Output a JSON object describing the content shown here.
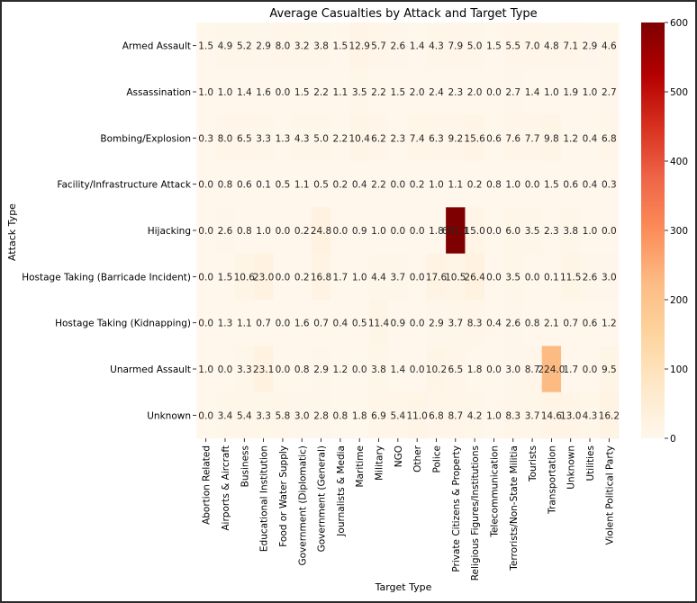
{
  "chart_data": {
    "type": "heatmap",
    "title": "Average Casualties by Attack and Target Type",
    "xlabel": "Target Type",
    "ylabel": "Attack Type",
    "colormap": "OrRd",
    "color_range": [
      0,
      600
    ],
    "colorbar_ticks": [
      0,
      100,
      200,
      300,
      400,
      500,
      600
    ],
    "columns": [
      "Abortion Related",
      "Airports & Aircraft",
      "Business",
      "Educational Institution",
      "Food or Water Supply",
      "Government (Diplomatic)",
      "Government (General)",
      "Journalists & Media",
      "Maritime",
      "Military",
      "NGO",
      "Other",
      "Police",
      "Private Citizens & Property",
      "Religious Figures/Institutions",
      "Telecommunication",
      "Terrorists/Non-State Militia",
      "Tourists",
      "Transportation",
      "Unknown",
      "Utilities",
      "Violent Political Party"
    ],
    "rows": [
      "Armed Assault",
      "Assassination",
      "Bombing/Explosion",
      "Facility/Infrastructure Attack",
      "Hijacking",
      "Hostage Taking (Barricade Incident)",
      "Hostage Taking (Kidnapping)",
      "Unarmed Assault",
      "Unknown"
    ],
    "values": [
      [
        1.5,
        4.9,
        5.2,
        2.9,
        8.0,
        3.2,
        3.8,
        1.5,
        12.9,
        5.7,
        2.6,
        1.4,
        4.3,
        7.9,
        5.0,
        1.5,
        5.5,
        7.0,
        4.8,
        7.1,
        2.9,
        4.6
      ],
      [
        1.0,
        1.0,
        1.4,
        1.6,
        0.0,
        1.5,
        2.2,
        1.1,
        3.5,
        2.2,
        1.5,
        2.0,
        2.4,
        2.3,
        2.0,
        0.0,
        2.7,
        1.4,
        1.0,
        1.9,
        1.0,
        2.7
      ],
      [
        0.3,
        8.0,
        6.5,
        3.3,
        1.3,
        4.3,
        5.0,
        2.2,
        10.4,
        6.2,
        2.3,
        7.4,
        6.3,
        9.2,
        15.6,
        0.6,
        7.6,
        7.7,
        9.8,
        1.2,
        0.4,
        6.8
      ],
      [
        0.0,
        0.8,
        0.6,
        0.1,
        0.5,
        1.1,
        0.5,
        0.2,
        0.4,
        2.2,
        0.0,
        0.2,
        1.0,
        1.1,
        0.2,
        0.8,
        1.0,
        0.0,
        1.5,
        0.6,
        0.4,
        0.3
      ],
      [
        0.0,
        2.6,
        0.8,
        1.0,
        0.0,
        0.2,
        24.8,
        0.0,
        0.9,
        1.0,
        0.0,
        0.0,
        1.8,
        601.1,
        15.0,
        0.0,
        6.0,
        3.5,
        2.3,
        3.8,
        1.0,
        0.0
      ],
      [
        0.0,
        1.5,
        10.6,
        23.0,
        0.0,
        0.2,
        16.8,
        1.7,
        1.0,
        4.4,
        3.7,
        0.0,
        17.6,
        10.5,
        26.4,
        0.0,
        3.5,
        0.0,
        0.1,
        11.5,
        2.6,
        3.0
      ],
      [
        0.0,
        1.3,
        1.1,
        0.7,
        0.0,
        1.6,
        0.7,
        0.4,
        0.5,
        11.4,
        0.9,
        0.0,
        2.9,
        3.7,
        8.3,
        0.4,
        2.6,
        0.8,
        2.1,
        0.7,
        0.6,
        1.2
      ],
      [
        1.0,
        0.0,
        3.3,
        23.1,
        0.0,
        0.8,
        2.9,
        1.2,
        0.0,
        3.8,
        1.4,
        0.0,
        10.2,
        6.5,
        1.8,
        0.0,
        3.0,
        8.7,
        224.0,
        1.7,
        0.0,
        9.5
      ],
      [
        0.0,
        3.4,
        5.4,
        3.3,
        5.8,
        3.0,
        2.8,
        0.8,
        1.8,
        6.9,
        5.4,
        11.0,
        6.8,
        8.7,
        4.2,
        1.0,
        8.3,
        3.7,
        14.6,
        13.0,
        4.3,
        16.2
      ]
    ]
  }
}
